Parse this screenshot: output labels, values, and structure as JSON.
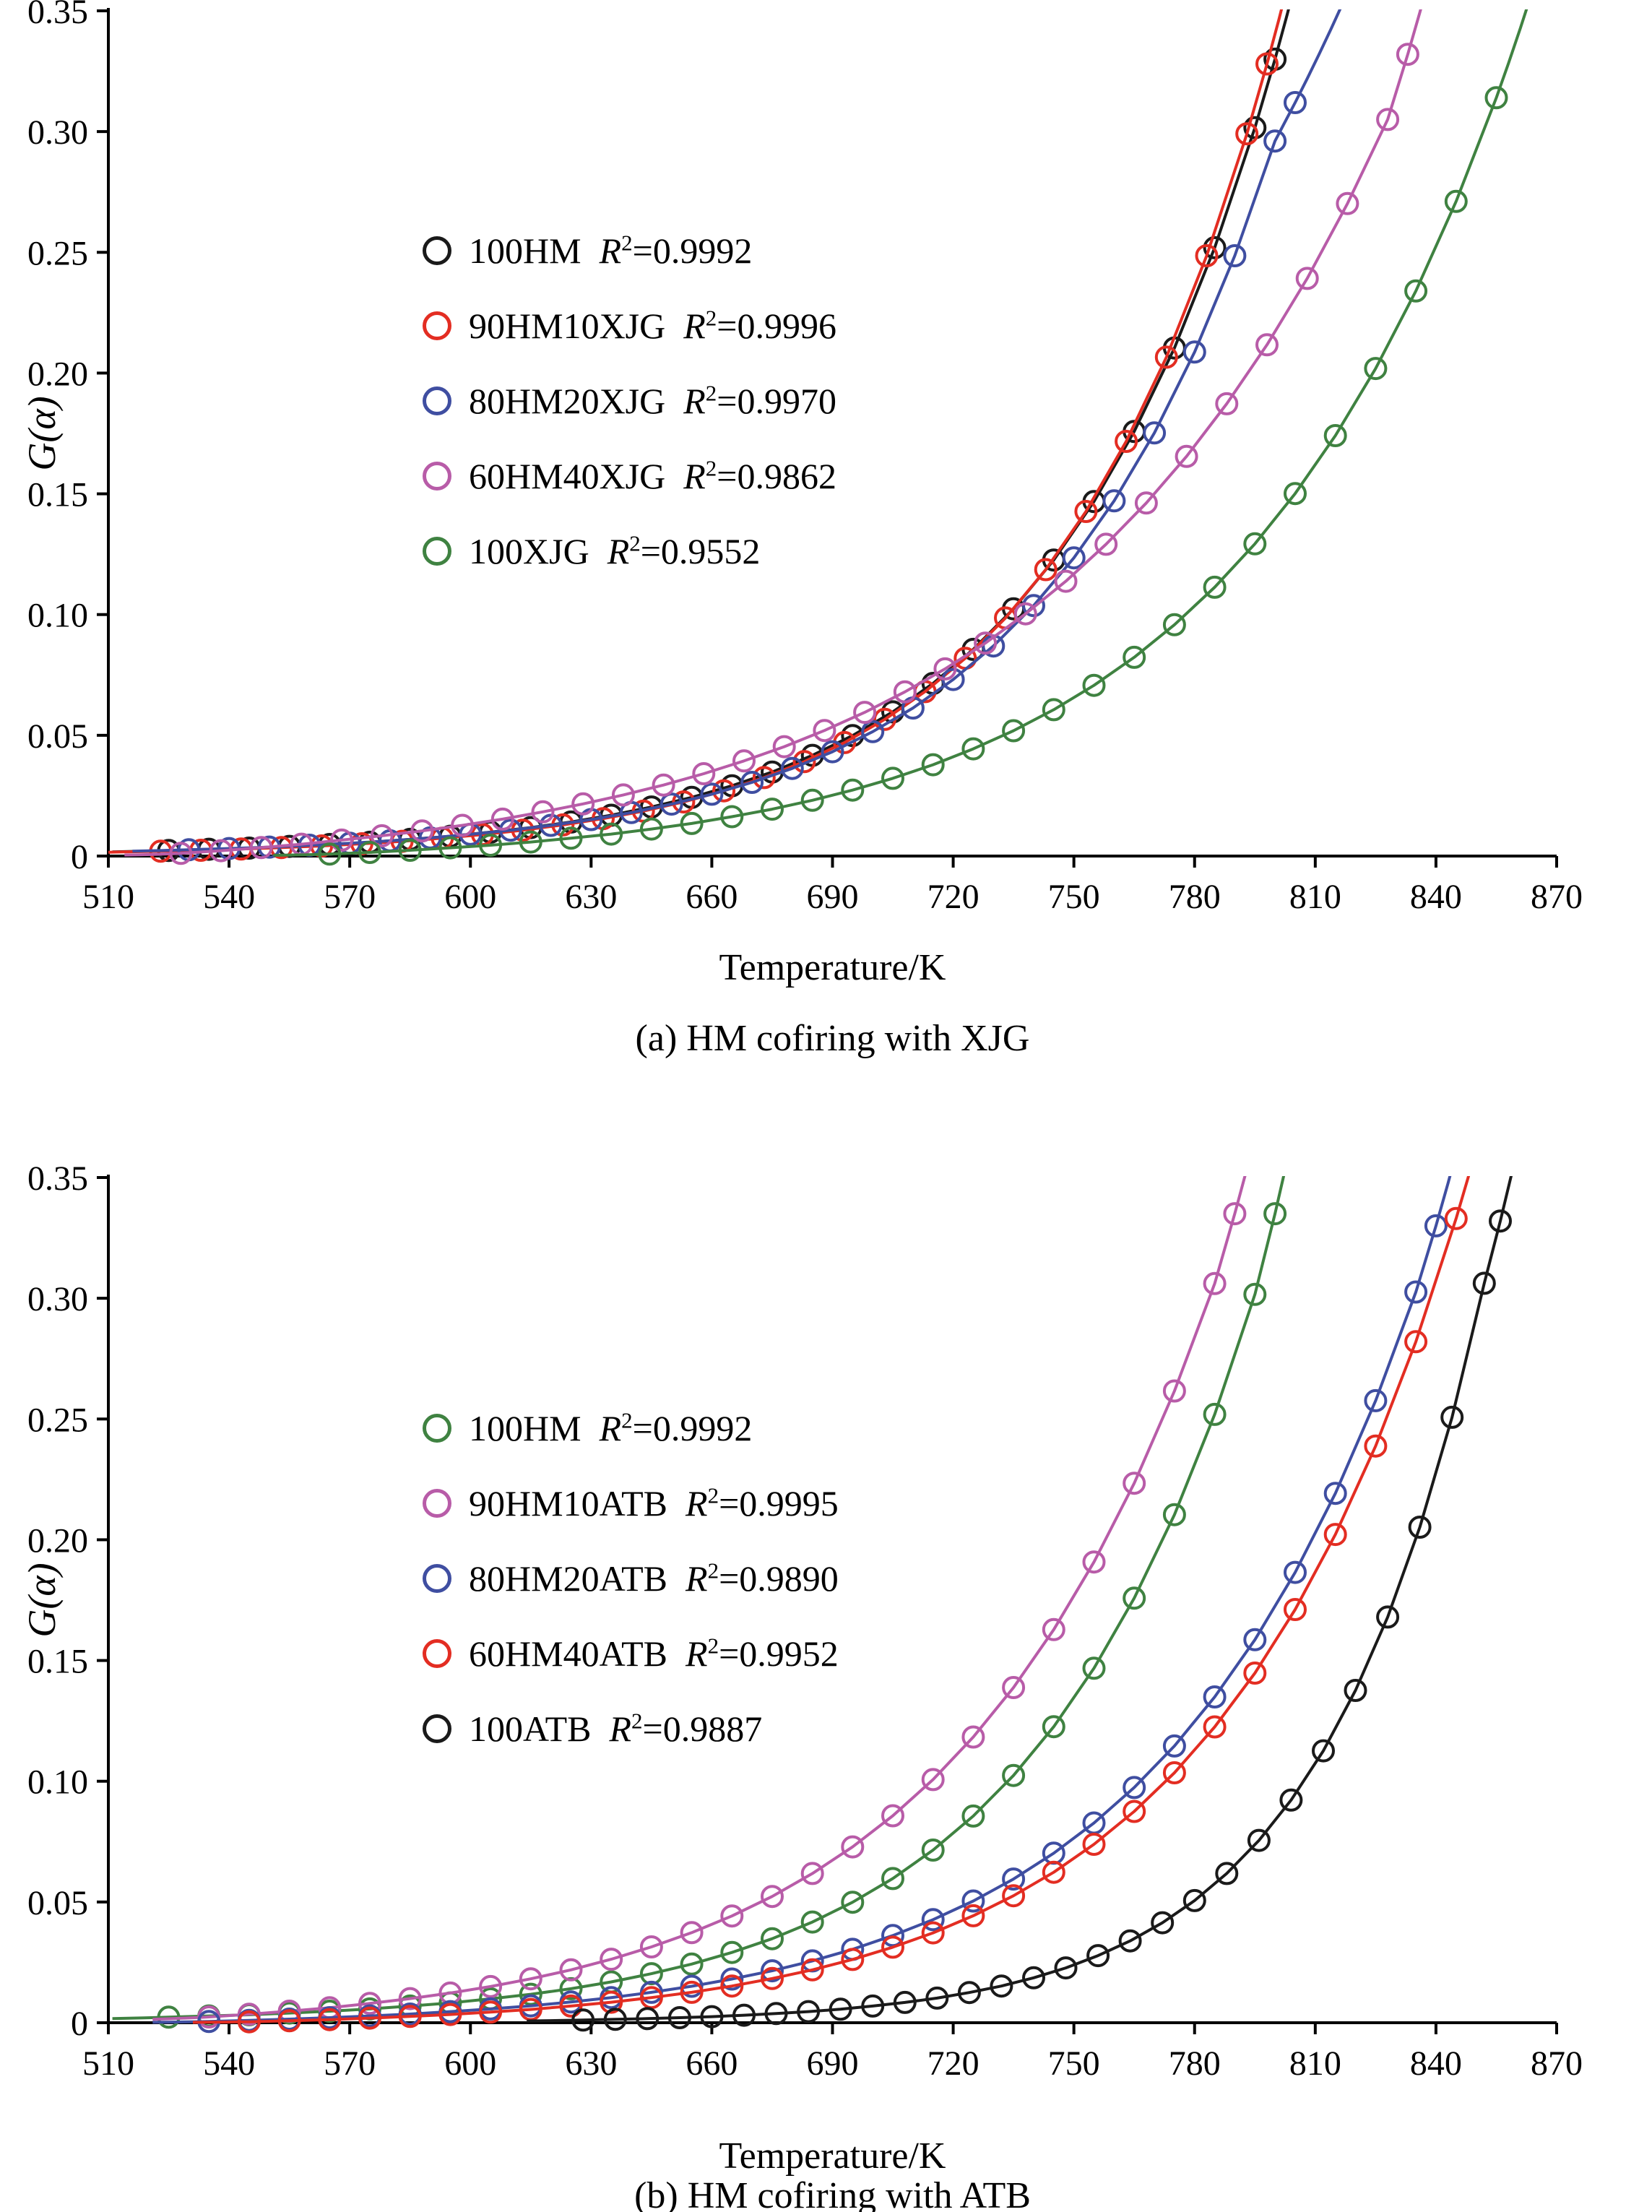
{
  "chart_data": [
    {
      "type": "scatter",
      "caption": "(a) HM cofiring with  XJG",
      "xlabel": "Temperature/K",
      "ylabel": "G(α)",
      "xlim": [
        510,
        870
      ],
      "ylim": [
        0,
        0.35
      ],
      "xticks": [
        510,
        540,
        570,
        600,
        630,
        660,
        690,
        720,
        750,
        780,
        810,
        840,
        870
      ],
      "ytick_labels": [
        "0",
        "0.05",
        "0.10",
        "0.15",
        "0.20",
        "0.25",
        "0.30",
        "0.35"
      ],
      "legend_position": "inside-upper-left",
      "series": [
        {
          "name": "100HM",
          "r2": "0.9992",
          "color": "#1a1a1a",
          "x": [
            525,
            535,
            545,
            555,
            565,
            575,
            585,
            595,
            605,
            615,
            625,
            635,
            645,
            655,
            665,
            675,
            685,
            695,
            705,
            715,
            725,
            735,
            745,
            755,
            765,
            775,
            785,
            795,
            800
          ],
          "y": [
            0.0023,
            0.0028,
            0.0033,
            0.004,
            0.0048,
            0.0057,
            0.0069,
            0.0082,
            0.0099,
            0.0118,
            0.0141,
            0.0169,
            0.0203,
            0.0243,
            0.0291,
            0.0348,
            0.0417,
            0.0499,
            0.0597,
            0.0715,
            0.0856,
            0.1024,
            0.1226,
            0.1468,
            0.1758,
            0.2104,
            0.2519,
            0.3016,
            0.33
          ]
        },
        {
          "name": "90HM10XJG",
          "r2": "0.9996",
          "color": "#e32d22",
          "x": [
            523,
            533,
            543,
            553,
            563,
            573,
            583,
            593,
            603,
            613,
            623,
            633,
            643,
            653,
            663,
            673,
            683,
            693,
            703,
            713,
            723,
            733,
            743,
            753,
            763,
            773,
            783,
            793,
            798
          ],
          "y": [
            0.002,
            0.0024,
            0.0029,
            0.0035,
            0.0042,
            0.0051,
            0.0061,
            0.0074,
            0.0089,
            0.0107,
            0.0129,
            0.0155,
            0.0186,
            0.0224,
            0.027,
            0.0325,
            0.0391,
            0.047,
            0.0566,
            0.0681,
            0.0819,
            0.0986,
            0.1186,
            0.1427,
            0.1717,
            0.2066,
            0.2486,
            0.2991,
            0.328
          ]
        },
        {
          "name": "80HM20XJG",
          "r2": "0.9970",
          "color": "#3f4ea1",
          "x": [
            530,
            540,
            550,
            560,
            570,
            580,
            590,
            600,
            610,
            620,
            630,
            640,
            650,
            660,
            670,
            680,
            690,
            700,
            710,
            720,
            730,
            740,
            750,
            760,
            770,
            780,
            790,
            800,
            805
          ],
          "y": [
            0.0026,
            0.0031,
            0.0037,
            0.0045,
            0.0053,
            0.0063,
            0.0075,
            0.009,
            0.0107,
            0.0127,
            0.0151,
            0.018,
            0.0215,
            0.0256,
            0.0305,
            0.0363,
            0.0432,
            0.0515,
            0.0613,
            0.0731,
            0.087,
            0.1037,
            0.1235,
            0.1471,
            0.1752,
            0.2087,
            0.2486,
            0.2961,
            0.312
          ]
        },
        {
          "name": "60HM40XJG",
          "r2": "0.9862",
          "color": "#b85ca8",
          "x": [
            528,
            538,
            548,
            558,
            568,
            578,
            588,
            598,
            608,
            618,
            628,
            638,
            648,
            658,
            668,
            678,
            688,
            698,
            708,
            718,
            728,
            738,
            748,
            758,
            768,
            778,
            788,
            798,
            808,
            818,
            828,
            833
          ],
          "y": [
            0.0011,
            0.0022,
            0.0035,
            0.0049,
            0.0066,
            0.0084,
            0.0104,
            0.0127,
            0.0153,
            0.0183,
            0.0216,
            0.0253,
            0.0294,
            0.0341,
            0.0394,
            0.0453,
            0.052,
            0.0595,
            0.068,
            0.0775,
            0.0882,
            0.1003,
            0.1138,
            0.1291,
            0.1462,
            0.1655,
            0.1873,
            0.2117,
            0.2392,
            0.2702,
            0.305,
            0.332
          ]
        },
        {
          "name": "100XJG",
          "r2": "0.9552",
          "color": "#3f8241",
          "x": [
            565,
            575,
            585,
            595,
            605,
            615,
            625,
            635,
            645,
            655,
            665,
            675,
            685,
            695,
            705,
            715,
            725,
            735,
            745,
            755,
            765,
            775,
            785,
            795,
            805,
            815,
            825,
            835,
            845,
            855
          ],
          "y": [
            0.0008,
            0.0015,
            0.0024,
            0.0034,
            0.0045,
            0.0058,
            0.0074,
            0.0091,
            0.0112,
            0.0135,
            0.0163,
            0.0194,
            0.0231,
            0.0273,
            0.0322,
            0.0378,
            0.0444,
            0.0519,
            0.0606,
            0.0707,
            0.0823,
            0.0958,
            0.1113,
            0.1293,
            0.1501,
            0.1741,
            0.2019,
            0.234,
            0.2711,
            0.314
          ]
        }
      ]
    },
    {
      "type": "scatter",
      "caption": "(b) HM cofiring with  ATB",
      "xlabel": "Temperature/K",
      "ylabel": "G(α)",
      "xlim": [
        510,
        870
      ],
      "ylim": [
        0,
        0.35
      ],
      "xticks": [
        510,
        540,
        570,
        600,
        630,
        660,
        690,
        720,
        750,
        780,
        810,
        840,
        870
      ],
      "ytick_labels": [
        "0",
        "0.05",
        "0.10",
        "0.15",
        "0.20",
        "0.25",
        "0.30",
        "0.35"
      ],
      "legend_position": "inside-upper-left",
      "series": [
        {
          "name": "100HM",
          "r2": "0.9992",
          "color": "#3f8241",
          "x": [
            525,
            535,
            545,
            555,
            565,
            575,
            585,
            595,
            605,
            615,
            625,
            635,
            645,
            655,
            665,
            675,
            685,
            695,
            705,
            715,
            725,
            735,
            745,
            755,
            765,
            775,
            785,
            795,
            800
          ],
          "y": [
            0.0023,
            0.0028,
            0.0033,
            0.004,
            0.0048,
            0.0057,
            0.0069,
            0.0082,
            0.0099,
            0.0118,
            0.0141,
            0.0169,
            0.0203,
            0.0243,
            0.0291,
            0.0348,
            0.0417,
            0.0499,
            0.0597,
            0.0715,
            0.0856,
            0.1024,
            0.1226,
            0.1468,
            0.1758,
            0.2104,
            0.2519,
            0.3016,
            0.335
          ]
        },
        {
          "name": "90HM10ATB",
          "r2": "0.9995",
          "color": "#b85ca8",
          "x": [
            535,
            545,
            555,
            565,
            575,
            585,
            595,
            605,
            615,
            625,
            635,
            645,
            655,
            665,
            675,
            685,
            695,
            705,
            715,
            725,
            735,
            745,
            755,
            765,
            775,
            785,
            790
          ],
          "y": [
            0.0024,
            0.0035,
            0.0048,
            0.0062,
            0.008,
            0.01,
            0.0123,
            0.015,
            0.0182,
            0.0219,
            0.0263,
            0.0314,
            0.0373,
            0.0442,
            0.0523,
            0.0618,
            0.0728,
            0.0857,
            0.1007,
            0.1183,
            0.1388,
            0.1628,
            0.1908,
            0.2234,
            0.2616,
            0.3061,
            0.335
          ]
        },
        {
          "name": "80HM20ATB",
          "r2": "0.9890",
          "color": "#3f4ea1",
          "x": [
            535,
            545,
            555,
            565,
            575,
            585,
            595,
            605,
            615,
            625,
            635,
            645,
            655,
            665,
            675,
            685,
            695,
            705,
            715,
            725,
            735,
            745,
            755,
            765,
            775,
            785,
            795,
            805,
            815,
            825,
            835,
            840
          ],
          "y": [
            0.0005,
            0.001,
            0.0015,
            0.0021,
            0.0028,
            0.0036,
            0.0046,
            0.0057,
            0.007,
            0.0086,
            0.0104,
            0.0126,
            0.0151,
            0.0181,
            0.0215,
            0.0256,
            0.0304,
            0.0361,
            0.0427,
            0.0504,
            0.0595,
            0.0702,
            0.0827,
            0.0974,
            0.1146,
            0.1349,
            0.1586,
            0.1865,
            0.2192,
            0.2576,
            0.3026,
            0.33
          ]
        },
        {
          "name": "60HM40ATB",
          "r2": "0.9952",
          "color": "#e32d22",
          "x": [
            545,
            555,
            565,
            575,
            585,
            595,
            605,
            615,
            625,
            635,
            645,
            655,
            665,
            675,
            685,
            695,
            705,
            715,
            725,
            735,
            745,
            755,
            765,
            775,
            785,
            795,
            805,
            815,
            825,
            835,
            845
          ],
          "y": [
            0.0004,
            0.0008,
            0.0013,
            0.0019,
            0.0026,
            0.0034,
            0.0044,
            0.0055,
            0.0069,
            0.0085,
            0.0104,
            0.0126,
            0.0152,
            0.0183,
            0.0219,
            0.0262,
            0.0313,
            0.0372,
            0.0443,
            0.0526,
            0.0623,
            0.0739,
            0.0875,
            0.1035,
            0.1225,
            0.1448,
            0.1711,
            0.2022,
            0.2388,
            0.282,
            0.333
          ]
        },
        {
          "name": "100ATB",
          "r2": "0.9887",
          "color": "#1a1a1a",
          "x": [
            628,
            636,
            644,
            652,
            660,
            668,
            676,
            684,
            692,
            700,
            708,
            716,
            724,
            732,
            740,
            748,
            756,
            764,
            772,
            780,
            788,
            796,
            804,
            812,
            820,
            828,
            836,
            844,
            852,
            856
          ],
          "y": [
            0.0011,
            0.0014,
            0.0017,
            0.0021,
            0.0025,
            0.0031,
            0.0038,
            0.0046,
            0.0056,
            0.0069,
            0.0084,
            0.0102,
            0.0125,
            0.0152,
            0.0186,
            0.0227,
            0.0278,
            0.0339,
            0.0414,
            0.0506,
            0.0618,
            0.0755,
            0.0922,
            0.1126,
            0.1376,
            0.168,
            0.2052,
            0.2507,
            0.3062,
            0.332
          ]
        }
      ]
    }
  ]
}
